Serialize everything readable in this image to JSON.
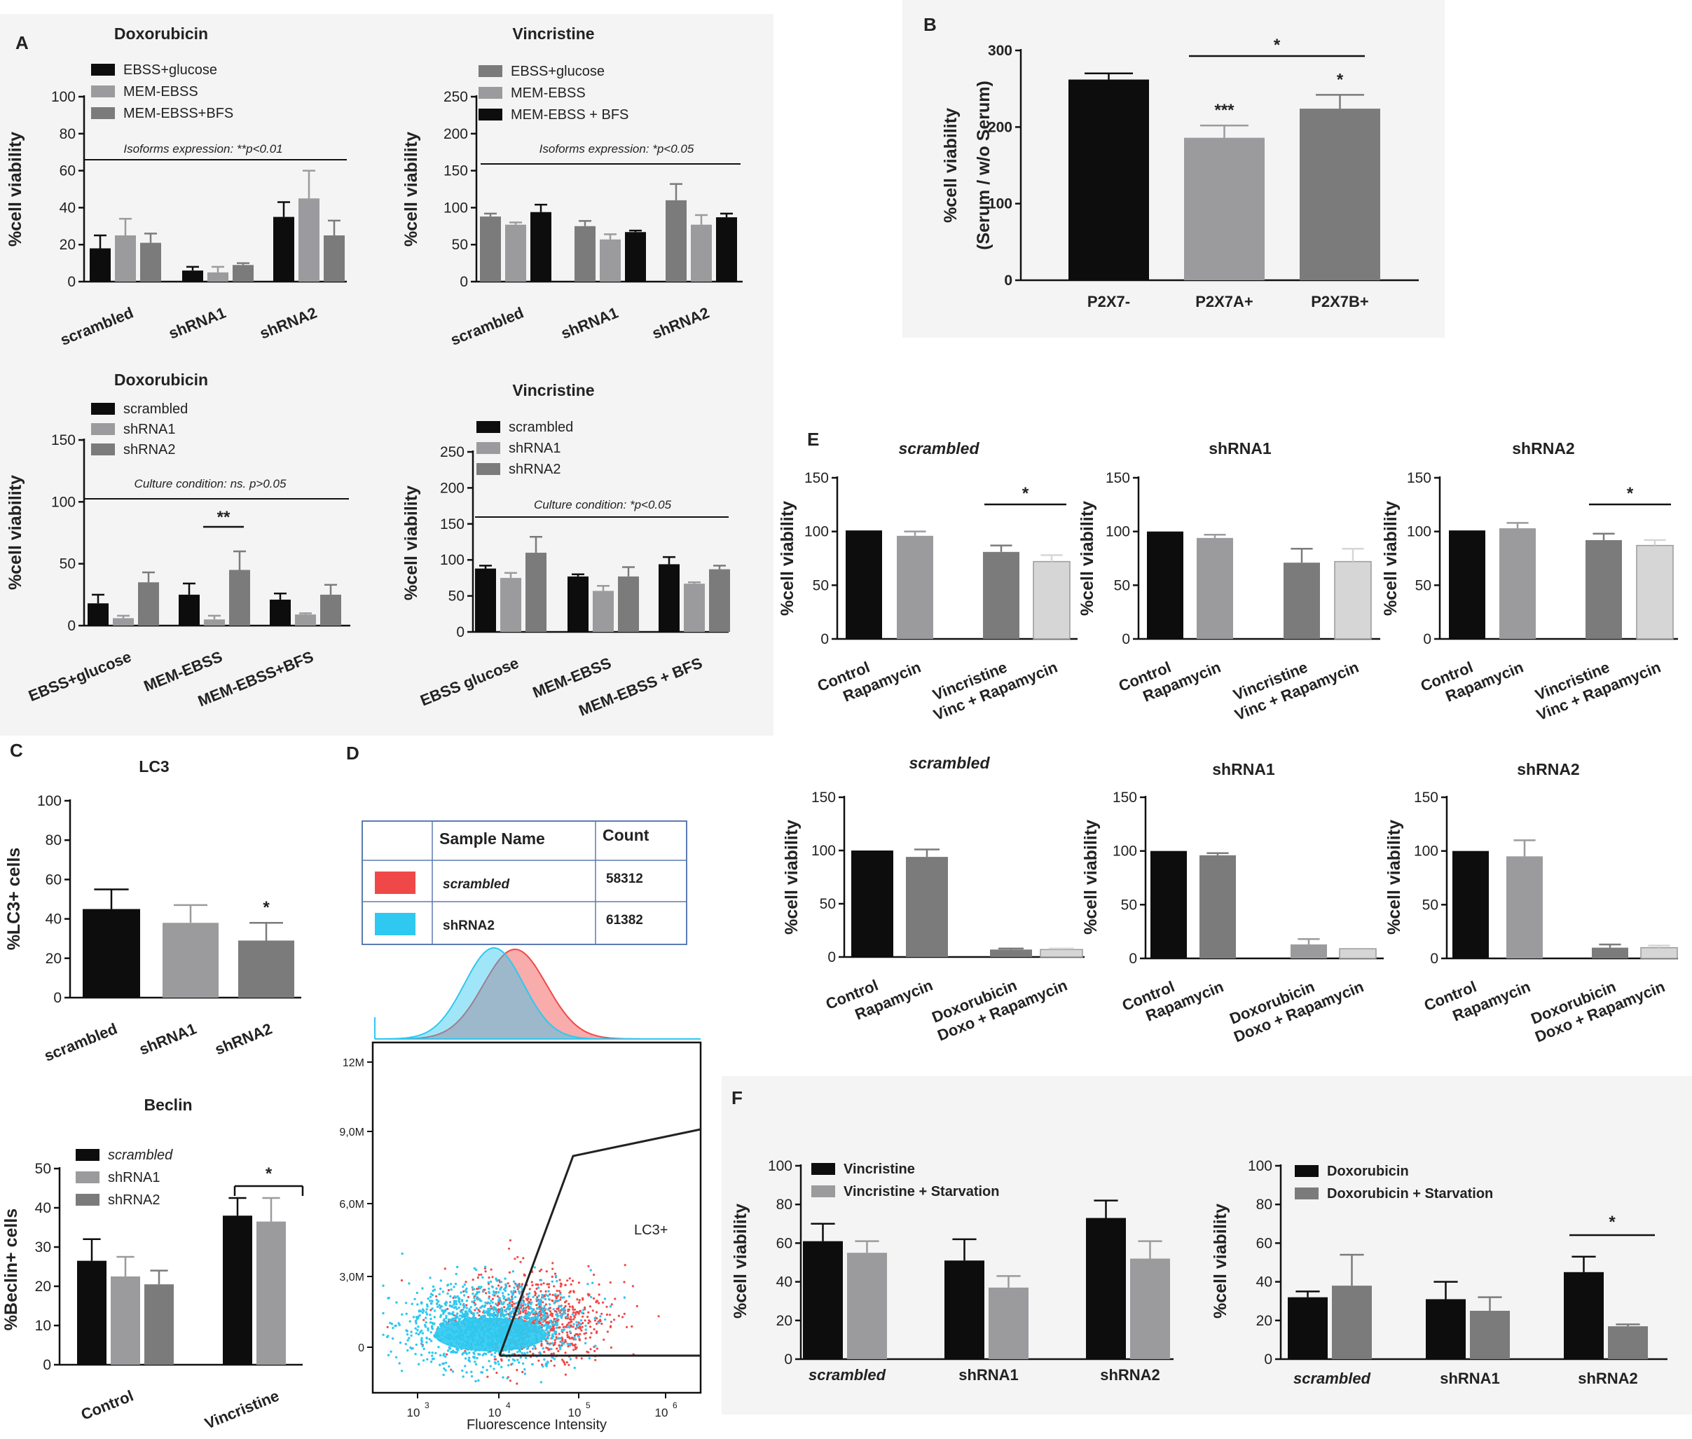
{
  "colors": {
    "black": "#0d0d0d",
    "mid": "#9b9b9e",
    "dark": "#7b7b7b",
    "light": "#d6d6d6",
    "scrambled_hist": "#f04848",
    "shrna2_hist": "#2ec8f0"
  },
  "panel_labels": {
    "A": "A",
    "B": "B",
    "C": "C",
    "D": "D",
    "E": "E",
    "F": "F"
  },
  "chart_data": [
    {
      "id": "A1",
      "panel": "A",
      "type": "bar",
      "title": "Doxorubicin",
      "ylabel": "%cell viability",
      "ylim": [
        0,
        100
      ],
      "yticks": [
        0,
        20,
        40,
        60,
        80,
        100
      ],
      "categories": [
        "scrambled",
        "shRNA1",
        "shRNA2"
      ],
      "series": [
        {
          "name": "EBSS+glucose",
          "color": "black",
          "values": [
            18,
            6,
            35
          ],
          "errors": [
            7,
            2,
            8
          ]
        },
        {
          "name": "MEM-EBSS",
          "color": "mid",
          "values": [
            25,
            5,
            45
          ],
          "errors": [
            9,
            3,
            15
          ]
        },
        {
          "name": "MEM-EBSS+BFS",
          "color": "dark",
          "values": [
            21,
            9,
            25
          ],
          "errors": [
            5,
            1,
            8
          ]
        }
      ],
      "annotation": "Isoforms expression: **p<0.01"
    },
    {
      "id": "A2",
      "panel": "A",
      "type": "bar",
      "title": "Vincristine",
      "ylabel": "%cell viability",
      "ylim": [
        0,
        250
      ],
      "yticks": [
        0,
        50,
        100,
        150,
        200,
        250
      ],
      "categories": [
        "scrambled",
        "shRNA1",
        "shRNA2"
      ],
      "series": [
        {
          "name": "EBSS+glucose",
          "color": "dark",
          "values": [
            88,
            75,
            110
          ],
          "errors": [
            4,
            7,
            22
          ]
        },
        {
          "name": "MEM-EBSS",
          "color": "mid",
          "values": [
            77,
            57,
            77
          ],
          "errors": [
            3,
            7,
            13
          ]
        },
        {
          "name": "MEM-EBSS + BFS",
          "color": "black",
          "values": [
            94,
            67,
            87
          ],
          "errors": [
            10,
            2,
            5
          ]
        }
      ],
      "annotation": "Isoforms expression: *p<0.05"
    },
    {
      "id": "A3",
      "panel": "A",
      "type": "bar",
      "title": "Doxorubicin",
      "ylabel": "%cell viability",
      "ylim": [
        0,
        150
      ],
      "yticks": [
        0,
        50,
        100,
        150
      ],
      "categories": [
        "EBSS+glucose",
        "MEM-EBSS",
        "MEM-EBSS+BFS"
      ],
      "series": [
        {
          "name": "scrambled",
          "color": "black",
          "values": [
            18,
            25,
            21
          ],
          "errors": [
            7,
            9,
            5
          ]
        },
        {
          "name": "shRNA1",
          "color": "mid",
          "values": [
            6,
            5,
            9
          ],
          "errors": [
            2,
            3,
            1
          ]
        },
        {
          "name": "shRNA2",
          "color": "dark",
          "values": [
            35,
            45,
            25
          ],
          "errors": [
            8,
            15,
            8
          ]
        }
      ],
      "annotation": "Culture condition:  ns. p>0.05",
      "significance": "**"
    },
    {
      "id": "A4",
      "panel": "A",
      "type": "bar",
      "title": "Vincristine",
      "ylabel": "%cell viability",
      "ylim": [
        0,
        250
      ],
      "yticks": [
        0,
        50,
        100,
        150,
        200,
        250
      ],
      "categories": [
        "EBSS glucose",
        "MEM-EBSS",
        "MEM-EBSS + BFS"
      ],
      "series": [
        {
          "name": "scrambled",
          "color": "black",
          "values": [
            88,
            77,
            94
          ],
          "errors": [
            4,
            3,
            10
          ]
        },
        {
          "name": "shRNA1",
          "color": "mid",
          "values": [
            75,
            57,
            67
          ],
          "errors": [
            7,
            7,
            2
          ]
        },
        {
          "name": "shRNA2",
          "color": "dark",
          "values": [
            110,
            77,
            87
          ],
          "errors": [
            22,
            13,
            5
          ]
        }
      ],
      "annotation": "Culture condition: *p<0.05"
    },
    {
      "id": "B",
      "panel": "B",
      "type": "bar",
      "title": "",
      "ylabel": "%cell viability",
      "ylabel2": "(Serum / w/o Serum)",
      "ylim": [
        0,
        300
      ],
      "yticks": [
        0,
        100,
        200,
        300
      ],
      "categories": [
        "P2X7-",
        "P2X7A+",
        "P2X7B+"
      ],
      "values": [
        262,
        186,
        224
      ],
      "errors": [
        8,
        16,
        18
      ],
      "stars": [
        "",
        "***",
        "*"
      ],
      "significance": "*"
    },
    {
      "id": "C1",
      "panel": "C",
      "type": "bar",
      "title": "LC3",
      "ylabel": "%LC3+ cells",
      "ylim": [
        0,
        100
      ],
      "yticks": [
        0,
        20,
        40,
        60,
        80,
        100
      ],
      "categories": [
        "scrambled",
        "shRNA1",
        "shRNA2"
      ],
      "values": [
        45,
        38,
        29
      ],
      "errors": [
        10,
        9,
        9
      ],
      "stars": [
        "",
        "",
        "*"
      ]
    },
    {
      "id": "C2",
      "panel": "C",
      "type": "bar",
      "title": "Beclin",
      "ylabel": "%Beclin+ cells",
      "ylim": [
        0,
        50
      ],
      "yticks": [
        0,
        10,
        20,
        30,
        40,
        50
      ],
      "categories": [
        "Control",
        "Vincristine"
      ],
      "series": [
        {
          "name": "scrambled",
          "color": "black",
          "values": [
            26.5,
            38
          ],
          "errors": [
            5.5,
            4.5
          ]
        },
        {
          "name": "shRNA1",
          "color": "mid",
          "values": [
            22.5,
            36.5
          ],
          "errors": [
            5,
            6
          ]
        },
        {
          "name": "shRNA2",
          "color": "dark",
          "values": [
            20.5,
            0
          ],
          "errors": [
            3.5,
            0
          ]
        }
      ],
      "significance": "*"
    },
    {
      "id": "D",
      "panel": "D",
      "type": "scatter",
      "title": "",
      "xlabel": "Fluorescence Intensity",
      "xticks": [
        "10",
        "10",
        "10",
        "10"
      ],
      "xtick_exponents": [
        "3",
        "4",
        "5",
        "6"
      ],
      "yticks": [
        "0",
        "3,0M",
        "6,0M",
        "9,0M",
        "12M"
      ],
      "gate_label": "LC3+",
      "table": {
        "headers": [
          "Sample Name",
          "Count"
        ],
        "rows": [
          {
            "name": "scrambled",
            "count": "58312",
            "color": "scrambled_hist"
          },
          {
            "name": "shRNA2",
            "count": "61382",
            "color": "shrna2_hist"
          }
        ]
      }
    },
    {
      "id": "E1",
      "panel": "E",
      "type": "bar",
      "title": "scrambled",
      "ylabel": "%cell viability",
      "ylim": [
        0,
        150
      ],
      "yticks": [
        0,
        50,
        100,
        150
      ],
      "categories": [
        "Control",
        "Rapamycin",
        "Vincristine",
        "Vinc + Rapamycin"
      ],
      "values": [
        101,
        96,
        81,
        72
      ],
      "errors": [
        0,
        4,
        6,
        6
      ],
      "colors": [
        "black",
        "mid",
        "dark",
        "light"
      ],
      "significance": "*"
    },
    {
      "id": "E2",
      "panel": "E",
      "type": "bar",
      "title": "shRNA1",
      "ylabel": "%cell viability",
      "ylim": [
        0,
        150
      ],
      "yticks": [
        0,
        50,
        100,
        150
      ],
      "categories": [
        "Control",
        "Rapamycin",
        "Vincristine",
        "Vinc + Rapamycin"
      ],
      "values": [
        100,
        94,
        71,
        72
      ],
      "errors": [
        0,
        3,
        13,
        12
      ],
      "colors": [
        "black",
        "mid",
        "dark",
        "light"
      ]
    },
    {
      "id": "E3",
      "panel": "E",
      "type": "bar",
      "title": "shRNA2",
      "ylabel": "%cell viability",
      "ylim": [
        0,
        150
      ],
      "yticks": [
        0,
        50,
        100,
        150
      ],
      "categories": [
        "Control",
        "Rapamycin",
        "Vincristine",
        "Vinc + Rapamycin"
      ],
      "values": [
        101,
        103,
        92,
        87
      ],
      "errors": [
        0,
        5,
        6,
        5
      ],
      "colors": [
        "black",
        "mid",
        "dark",
        "light"
      ],
      "significance": "*"
    },
    {
      "id": "E4",
      "panel": "E",
      "type": "bar",
      "title": "scrambled",
      "ylabel": "%cell viability",
      "ylim": [
        0,
        150
      ],
      "yticks": [
        0,
        50,
        100,
        150
      ],
      "categories": [
        "Control",
        "Rapamycin",
        "Doxorubicin",
        "Doxo + Rapamycin"
      ],
      "values": [
        100,
        94,
        7,
        7
      ],
      "errors": [
        0,
        7,
        1,
        1
      ],
      "colors": [
        "black",
        "dark",
        "dark",
        "light"
      ]
    },
    {
      "id": "E5",
      "panel": "E",
      "type": "bar",
      "title": "shRNA1",
      "ylabel": "%cell viability",
      "ylim": [
        0,
        150
      ],
      "yticks": [
        0,
        50,
        100,
        150
      ],
      "categories": [
        "Control",
        "Rapamycin",
        "Doxorubicin",
        "Doxo + Rapamycin"
      ],
      "values": [
        100,
        96,
        13,
        9
      ],
      "errors": [
        0,
        2,
        5,
        0
      ],
      "colors": [
        "black",
        "dark",
        "mid",
        "light"
      ]
    },
    {
      "id": "E6",
      "panel": "E",
      "type": "bar",
      "title": "shRNA2",
      "ylabel": "%cell viability",
      "ylim": [
        0,
        150
      ],
      "yticks": [
        0,
        50,
        100,
        150
      ],
      "categories": [
        "Control",
        "Rapamycin",
        "Doxorubicin",
        "Doxo + Rapamycin"
      ],
      "values": [
        100,
        95,
        10,
        10
      ],
      "errors": [
        0,
        15,
        3,
        2
      ],
      "colors": [
        "black",
        "mid",
        "dark",
        "light"
      ]
    },
    {
      "id": "F1",
      "panel": "F",
      "type": "bar",
      "title": "",
      "ylabel": "%cell viability",
      "ylim": [
        0,
        100
      ],
      "yticks": [
        0,
        20,
        40,
        60,
        80,
        100
      ],
      "categories": [
        "scrambled",
        "shRNA1",
        "shRNA2"
      ],
      "series": [
        {
          "name": "Vincristine",
          "color": "black",
          "values": [
            61,
            51,
            73
          ],
          "errors": [
            9,
            11,
            9
          ]
        },
        {
          "name": "Vincristine + Starvation",
          "color": "mid",
          "values": [
            55,
            37,
            52
          ],
          "errors": [
            6,
            6,
            9
          ]
        }
      ]
    },
    {
      "id": "F2",
      "panel": "F",
      "type": "bar",
      "title": "",
      "ylabel": "%cell viability",
      "ylim": [
        0,
        100
      ],
      "yticks": [
        0,
        20,
        40,
        60,
        80,
        100
      ],
      "categories": [
        "scrambled",
        "shRNA1",
        "shRNA2"
      ],
      "series": [
        {
          "name": "Doxorubicin",
          "color": "black",
          "values": [
            32,
            31,
            45
          ],
          "errors": [
            3,
            9,
            8
          ]
        },
        {
          "name": "Doxorubicin + Starvation",
          "color": "dark",
          "values": [
            38,
            25,
            17
          ],
          "errors": [
            16,
            7,
            1
          ]
        }
      ],
      "significance": "*"
    }
  ]
}
